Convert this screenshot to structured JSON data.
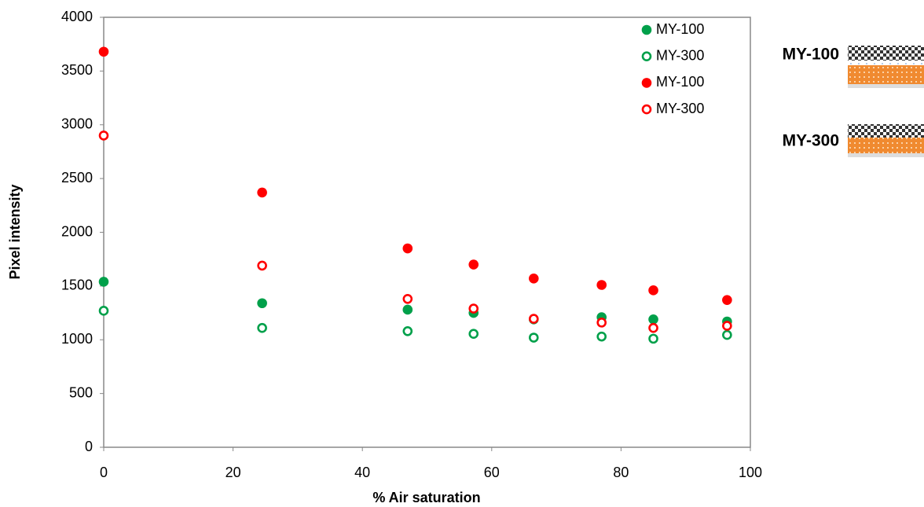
{
  "chart_data": {
    "type": "scatter",
    "x_label": "% Air saturation",
    "y_label": "Pixel intensity",
    "x": [
      0,
      24.5,
      47,
      57.2,
      66.5,
      77,
      85,
      96.4
    ],
    "series": [
      {
        "name": "MY-100",
        "color": "#00a04a",
        "marker": "filled",
        "values": [
          1540,
          1340,
          1280,
          1250,
          1190,
          1210,
          1190,
          1170
        ]
      },
      {
        "name": "MY-300",
        "color": "#00a04a",
        "marker": "open",
        "values": [
          1270,
          1110,
          1080,
          1055,
          1020,
          1030,
          1010,
          1045
        ]
      },
      {
        "name": "MY-100",
        "color": "#ff0000",
        "marker": "filled",
        "values": [
          3680,
          2370,
          1850,
          1700,
          1570,
          1510,
          1460,
          1370
        ]
      },
      {
        "name": "MY-300",
        "color": "#ff0000",
        "marker": "open",
        "values": [
          2900,
          1690,
          1380,
          1290,
          1195,
          1160,
          1110,
          1130
        ]
      }
    ],
    "xlim": [
      0,
      100
    ],
    "xticks": [
      0,
      20,
      40,
      60,
      80,
      100
    ],
    "ylim": [
      0,
      4000
    ],
    "yticks": [
      0,
      500,
      1000,
      1500,
      2000,
      2500,
      3000,
      3500,
      4000
    ],
    "grid": false,
    "legend": "top-right",
    "side_labels": [
      "MY-100",
      "MY-300"
    ]
  }
}
